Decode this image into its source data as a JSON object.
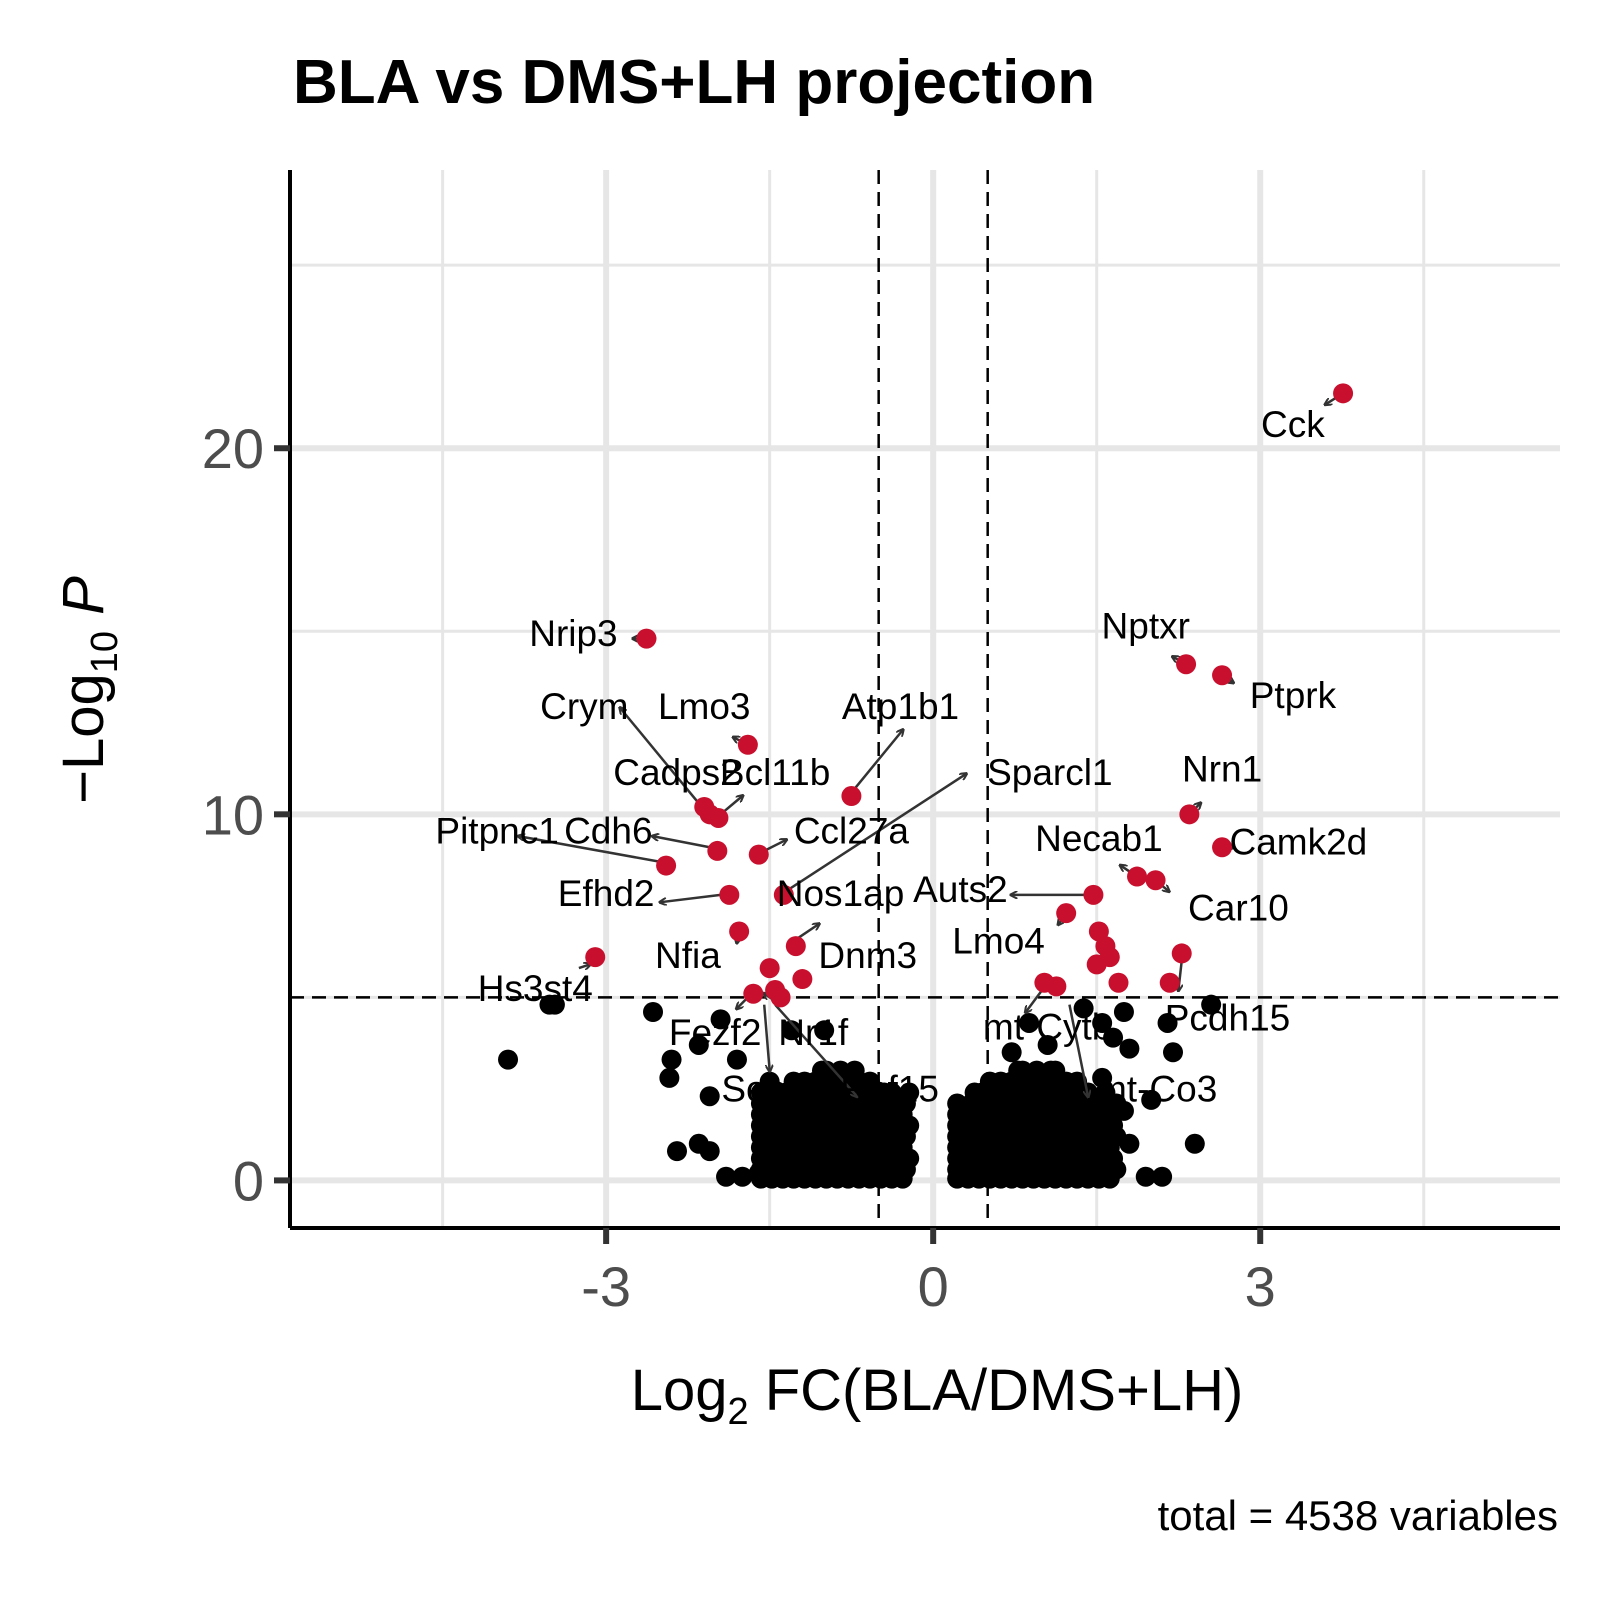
{
  "chart_data": {
    "type": "scatter",
    "title": "BLA vs DMS+LH projection",
    "xlabel": {
      "pre": "Log",
      "sub": "2",
      "post": " FC(BLA/DMS+LH)"
    },
    "ylabel": {
      "pre": "−Log",
      "sub": "10",
      "post": " ",
      "italic": "P"
    },
    "caption": "total = 4538 variables",
    "xlim": [
      -5.9,
      5.75
    ],
    "ylim": [
      -1.3,
      27.6
    ],
    "x_ticks": [
      -3,
      0,
      3
    ],
    "x_tick_labels": [
      "-3",
      "0",
      "3"
    ],
    "y_ticks": [
      0,
      10,
      20
    ],
    "y_tick_labels": [
      "0",
      "10",
      "20"
    ],
    "grid": true,
    "fc_cutoff": 0.5,
    "p_cutoff": 5,
    "colors": {
      "significant": "#c8102e",
      "not_significant": "#000000",
      "grid": "#e6e6e6",
      "axis": "#000000",
      "arrow": "#333333"
    },
    "significant": [
      {
        "gene": "Cck",
        "x": 3.76,
        "y": 21.5
      },
      {
        "gene": "Nptxr",
        "x": 2.32,
        "y": 14.1
      },
      {
        "gene": "Ptprk",
        "x": 2.65,
        "y": 13.8
      },
      {
        "gene": "Nrn1",
        "x": 2.35,
        "y": 10.0
      },
      {
        "gene": "Camk2d",
        "x": 2.65,
        "y": 9.1
      },
      {
        "gene": "Necab1",
        "x": 1.87,
        "y": 8.3
      },
      {
        "gene": "Car10",
        "x": 2.04,
        "y": 8.2
      },
      {
        "gene": "Auts2",
        "x": 1.47,
        "y": 7.8
      },
      {
        "gene": "",
        "x": 1.22,
        "y": 7.3
      },
      {
        "gene": "",
        "x": 1.52,
        "y": 6.8
      },
      {
        "gene": "",
        "x": 1.58,
        "y": 6.4
      },
      {
        "gene": "",
        "x": 1.62,
        "y": 6.1
      },
      {
        "gene": "",
        "x": 1.5,
        "y": 5.9
      },
      {
        "gene": "",
        "x": 1.7,
        "y": 5.4
      },
      {
        "gene": "Pcdh15",
        "x": 2.28,
        "y": 6.2
      },
      {
        "gene": "",
        "x": 2.17,
        "y": 5.4
      },
      {
        "gene": "Lmo4",
        "x": 1.02,
        "y": 5.4
      },
      {
        "gene": "",
        "x": 1.13,
        "y": 5.3
      },
      {
        "gene": "Nrip3",
        "x": -2.63,
        "y": 14.8
      },
      {
        "gene": "Lmo3",
        "x": -1.7,
        "y": 11.9
      },
      {
        "gene": "Atp1b1",
        "x": -0.75,
        "y": 10.5
      },
      {
        "gene": "Crym",
        "x": -2.1,
        "y": 10.2
      },
      {
        "gene": "Cadps2",
        "x": -2.05,
        "y": 10.0
      },
      {
        "gene": "Bcl11b",
        "x": -1.97,
        "y": 9.9
      },
      {
        "gene": "Cdh6",
        "x": -1.98,
        "y": 9.0
      },
      {
        "gene": "Ccl27a",
        "x": -1.6,
        "y": 8.9
      },
      {
        "gene": "Pitpnc1",
        "x": -2.45,
        "y": 8.6
      },
      {
        "gene": "Sparcl1",
        "x": -1.37,
        "y": 7.8
      },
      {
        "gene": "Efhd2",
        "x": -1.87,
        "y": 7.8
      },
      {
        "gene": "Nfia",
        "x": -1.78,
        "y": 6.8
      },
      {
        "gene": "Nos1ap",
        "x": -1.26,
        "y": 6.4
      },
      {
        "gene": "Hs3st4",
        "x": -3.1,
        "y": 6.1
      },
      {
        "gene": "Dnm3",
        "x": -1.2,
        "y": 5.5
      },
      {
        "gene": "",
        "x": -1.5,
        "y": 5.8
      },
      {
        "gene": "Fezf2",
        "x": -1.65,
        "y": 5.1
      },
      {
        "gene": "",
        "x": -1.45,
        "y": 5.2
      },
      {
        "gene": "",
        "x": -1.4,
        "y": 5.0
      }
    ],
    "nonsignificant": [
      {
        "gene": "Hs3st4",
        "x": -3.52,
        "y": 4.8
      },
      {
        "gene": "",
        "x": -3.47,
        "y": 4.8
      },
      {
        "gene": "",
        "x": -3.9,
        "y": 3.3
      },
      {
        "gene": "",
        "x": -2.57,
        "y": 4.6
      },
      {
        "gene": "",
        "x": -2.4,
        "y": 3.3
      },
      {
        "gene": "",
        "x": -2.42,
        "y": 2.8
      },
      {
        "gene": "",
        "x": -2.15,
        "y": 3.7
      },
      {
        "gene": "",
        "x": -1.95,
        "y": 4.4
      },
      {
        "gene": "",
        "x": -2.05,
        "y": 2.3
      },
      {
        "gene": "",
        "x": -1.8,
        "y": 3.3
      },
      {
        "gene": "",
        "x": -2.35,
        "y": 0.8
      },
      {
        "gene": "",
        "x": -2.15,
        "y": 1.0
      },
      {
        "gene": "",
        "x": -2.05,
        "y": 0.8
      },
      {
        "gene": "",
        "x": -1.9,
        "y": 0.1
      },
      {
        "gene": "",
        "x": -1.75,
        "y": 0.1
      },
      {
        "gene": "",
        "x": -1.6,
        "y": 0.2
      },
      {
        "gene": "Nr1f",
        "x": -1.3,
        "y": 4.1
      },
      {
        "gene": "",
        "x": -1.0,
        "y": 4.1
      },
      {
        "gene": "Sema",
        "x": -1.5,
        "y": 2.7
      },
      {
        "gene": "Rnf15",
        "x": -0.6,
        "y": 2.4
      },
      {
        "gene": "",
        "x": -0.4,
        "y": 1.5
      },
      {
        "gene": "",
        "x": -0.35,
        "y": 0.8
      },
      {
        "gene": "",
        "x": -0.3,
        "y": 0.3
      },
      {
        "gene": "",
        "x": -1.1,
        "y": 1.3
      },
      {
        "gene": "",
        "x": -1.25,
        "y": 2.0
      },
      {
        "gene": "",
        "x": -0.8,
        "y": 1.9
      },
      {
        "gene": "mt-Cytb",
        "x": 0.88,
        "y": 4.3
      },
      {
        "gene": "",
        "x": 0.72,
        "y": 3.5
      },
      {
        "gene": "",
        "x": 1.05,
        "y": 3.7
      },
      {
        "gene": "",
        "x": 1.38,
        "y": 4.7
      },
      {
        "gene": "",
        "x": 1.55,
        "y": 4.3
      },
      {
        "gene": "",
        "x": 1.75,
        "y": 4.6
      },
      {
        "gene": "",
        "x": 1.8,
        "y": 3.6
      },
      {
        "gene": "",
        "x": 1.65,
        "y": 3.9
      },
      {
        "gene": "",
        "x": 2.15,
        "y": 4.3
      },
      {
        "gene": "",
        "x": 2.55,
        "y": 4.8
      },
      {
        "gene": "",
        "x": 2.2,
        "y": 3.5
      },
      {
        "gene": "mt-Co3",
        "x": 2.0,
        "y": 2.2
      },
      {
        "gene": "",
        "x": 1.55,
        "y": 2.8
      },
      {
        "gene": "",
        "x": 1.75,
        "y": 1.9
      },
      {
        "gene": "",
        "x": 1.8,
        "y": 1.0
      },
      {
        "gene": "",
        "x": 2.4,
        "y": 1.0
      },
      {
        "gene": "",
        "x": 2.1,
        "y": 0.1
      },
      {
        "gene": "",
        "x": 1.95,
        "y": 0.1
      },
      {
        "gene": "",
        "x": 0.55,
        "y": 2.5
      },
      {
        "gene": "",
        "x": 0.45,
        "y": 1.2
      },
      {
        "gene": "",
        "x": 0.35,
        "y": 0.4
      },
      {
        "gene": "",
        "x": 0.3,
        "y": 0.1
      }
    ],
    "labels": [
      {
        "gene": "Cck",
        "lx": 3.3,
        "ly": 20.3,
        "ax": 3.6,
        "ay": 21.2
      },
      {
        "gene": "Nptxr",
        "lx": 1.95,
        "ly": 14.8,
        "ax": 2.2,
        "ay": 14.3
      },
      {
        "gene": "Ptprk",
        "lx": 3.3,
        "ly": 12.9,
        "ax": 2.75,
        "ay": 13.6
      },
      {
        "gene": "Nrn1",
        "lx": 2.65,
        "ly": 10.9,
        "ax": 2.45,
        "ay": 10.3
      },
      {
        "gene": "Camk2d",
        "lx": 3.35,
        "ly": 8.9,
        "ax": 2.75,
        "ay": 9.1
      },
      {
        "gene": "Necab1",
        "lx": 1.52,
        "ly": 9.0,
        "ax": 1.72,
        "ay": 8.6
      },
      {
        "gene": "Car10",
        "lx": 2.8,
        "ly": 7.1,
        "ax": 2.16,
        "ay": 7.9
      },
      {
        "gene": "Auts2",
        "lx": 0.25,
        "ly": 7.6,
        "ax": 0.72,
        "ay": 7.8,
        "from": [
          1.38,
          7.8
        ]
      },
      {
        "gene": "Lmo4",
        "lx": 0.6,
        "ly": 6.2,
        "ax": 1.15,
        "ay": 7.0,
        "from": [
          1.2,
          7.2
        ]
      },
      {
        "gene": "Pcdh15",
        "lx": 2.7,
        "ly": 4.1,
        "ax": 2.25,
        "ay": 5.2,
        "from": [
          2.28,
          6.0
        ]
      },
      {
        "gene": "mt-Cytb",
        "lx": 1.05,
        "ly": 3.85,
        "ax": 0.85,
        "ay": 4.6,
        "from": [
          1.0,
          5.2
        ]
      },
      {
        "gene": "mt-Co3",
        "lx": 2.05,
        "ly": 2.15,
        "ax": 1.42,
        "ay": 2.3,
        "from": [
          1.25,
          4.8
        ]
      },
      {
        "gene": "Nrip3",
        "lx": -3.3,
        "ly": 14.6,
        "ax": -2.75,
        "ay": 14.8
      },
      {
        "gene": "Crym",
        "lx": -3.2,
        "ly": 12.6,
        "ax": -2.87,
        "ay": 12.9,
        "from": [
          -2.15,
          10.3
        ]
      },
      {
        "gene": "Lmo3",
        "lx": -2.1,
        "ly": 12.6,
        "ax": -1.83,
        "ay": 12.1
      },
      {
        "gene": "Atp1b1",
        "lx": -0.3,
        "ly": 12.6,
        "ax": -0.28,
        "ay": 12.3,
        "from": [
          -0.72,
          10.7
        ]
      },
      {
        "gene": "Cadps2",
        "lx": -2.35,
        "ly": 10.8,
        "ax": -2.15,
        "ay": 10.3
      },
      {
        "gene": "Bcl11b",
        "lx": -1.45,
        "ly": 10.8,
        "ax": -1.75,
        "ay": 10.5,
        "from": [
          -1.95,
          10.0
        ]
      },
      {
        "gene": "Sparcl1",
        "lx": 1.07,
        "ly": 10.8,
        "ax": 0.3,
        "ay": 11.1,
        "from": [
          -1.35,
          7.9
        ]
      },
      {
        "gene": "Pitpnc1",
        "lx": -4.0,
        "ly": 9.2,
        "ax": -3.8,
        "ay": 9.4,
        "from": [
          -2.5,
          8.7
        ]
      },
      {
        "gene": "Cdh6",
        "lx": -2.98,
        "ly": 9.2,
        "ax": -2.57,
        "ay": 9.4,
        "from": [
          -2.05,
          9.1
        ]
      },
      {
        "gene": "Ccl27a",
        "lx": -0.75,
        "ly": 9.2,
        "ax": -1.35,
        "ay": 9.3,
        "from": [
          -1.55,
          9.0
        ]
      },
      {
        "gene": "Efhd2",
        "lx": -3.0,
        "ly": 7.5,
        "ax": -2.5,
        "ay": 7.6,
        "from": [
          -1.95,
          7.8
        ]
      },
      {
        "gene": "Nos1ap",
        "lx": -0.85,
        "ly": 7.5,
        "ax": -1.05,
        "ay": 7.0,
        "from": [
          -1.25,
          6.6
        ]
      },
      {
        "gene": "Nfia",
        "lx": -2.25,
        "ly": 5.8,
        "ax": -1.8,
        "ay": 6.5
      },
      {
        "gene": "Dnm3",
        "lx": -0.6,
        "ly": 5.8,
        "ax": -1.15,
        "ay": 5.6
      },
      {
        "gene": "Hs3st4",
        "lx": -3.65,
        "ly": 4.9,
        "ax": -3.15,
        "ay": 5.9,
        "from": [
          -3.25,
          5.8
        ]
      },
      {
        "gene": "Fezf2",
        "lx": -2.0,
        "ly": 3.7,
        "ax": -1.8,
        "ay": 4.7,
        "from": [
          -1.7,
          5.0
        ]
      },
      {
        "gene": "Nr1f",
        "lx": -1.1,
        "ly": 3.7,
        "ax": -1.55,
        "ay": 5.1,
        "from": [
          -1.45,
          4.9
        ]
      },
      {
        "gene": "Sema",
        "lx": -1.5,
        "ly": 2.15,
        "ax": -1.5,
        "ay": 3.0,
        "from": [
          -1.55,
          4.8
        ]
      },
      {
        "gene": "Rnf15",
        "lx": -0.4,
        "ly": 2.15,
        "ax": -0.7,
        "ay": 2.3,
        "from": [
          -1.45,
          4.8
        ]
      }
    ]
  }
}
